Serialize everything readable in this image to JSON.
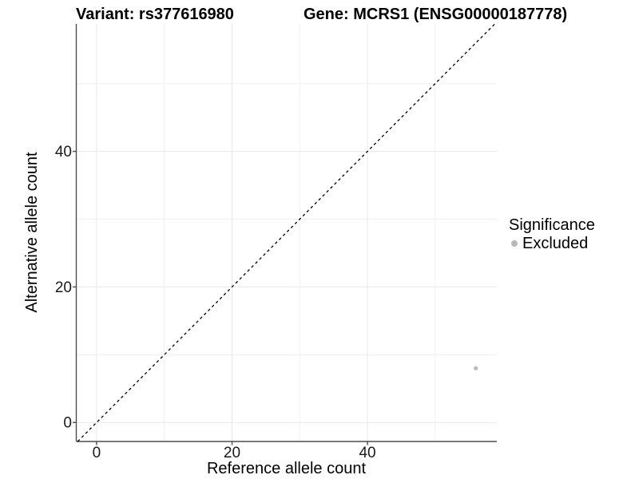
{
  "chart_data": {
    "type": "scatter",
    "titles": {
      "left": "Variant: rs377616980",
      "right": "Gene: MCRS1 (ENSG00000187778)"
    },
    "xlabel": "Reference allele count",
    "ylabel": "Alternative allele count",
    "xlim": [
      -3,
      59.1
    ],
    "ylim": [
      -2.8,
      58.8
    ],
    "x_ticks": [
      0,
      20,
      40
    ],
    "y_ticks": [
      0,
      20,
      40
    ],
    "x_minor_gridlines": [
      10,
      30,
      50
    ],
    "y_minor_gridlines": [
      10,
      30,
      50
    ],
    "grid": "on",
    "identity_line": {
      "style": "dashed",
      "intercept": 0,
      "slope": 1,
      "color": "#000000"
    },
    "series": [
      {
        "name": "Excluded",
        "color": "#bebebe",
        "points": [
          {
            "x": 56,
            "y": 8
          }
        ]
      }
    ],
    "legend": {
      "title": "Significance",
      "position": "right",
      "entries": [
        {
          "label": "Excluded",
          "color": "#b8b8b8"
        }
      ]
    }
  },
  "colors": {
    "background": "#ffffff",
    "axis_line": "#4d4d4d",
    "tick_mark": "#4d4d4d",
    "tick_label": "#1a1a1a",
    "grid_major": "#e8e8e8",
    "grid_minor": "#f0f0f0"
  }
}
